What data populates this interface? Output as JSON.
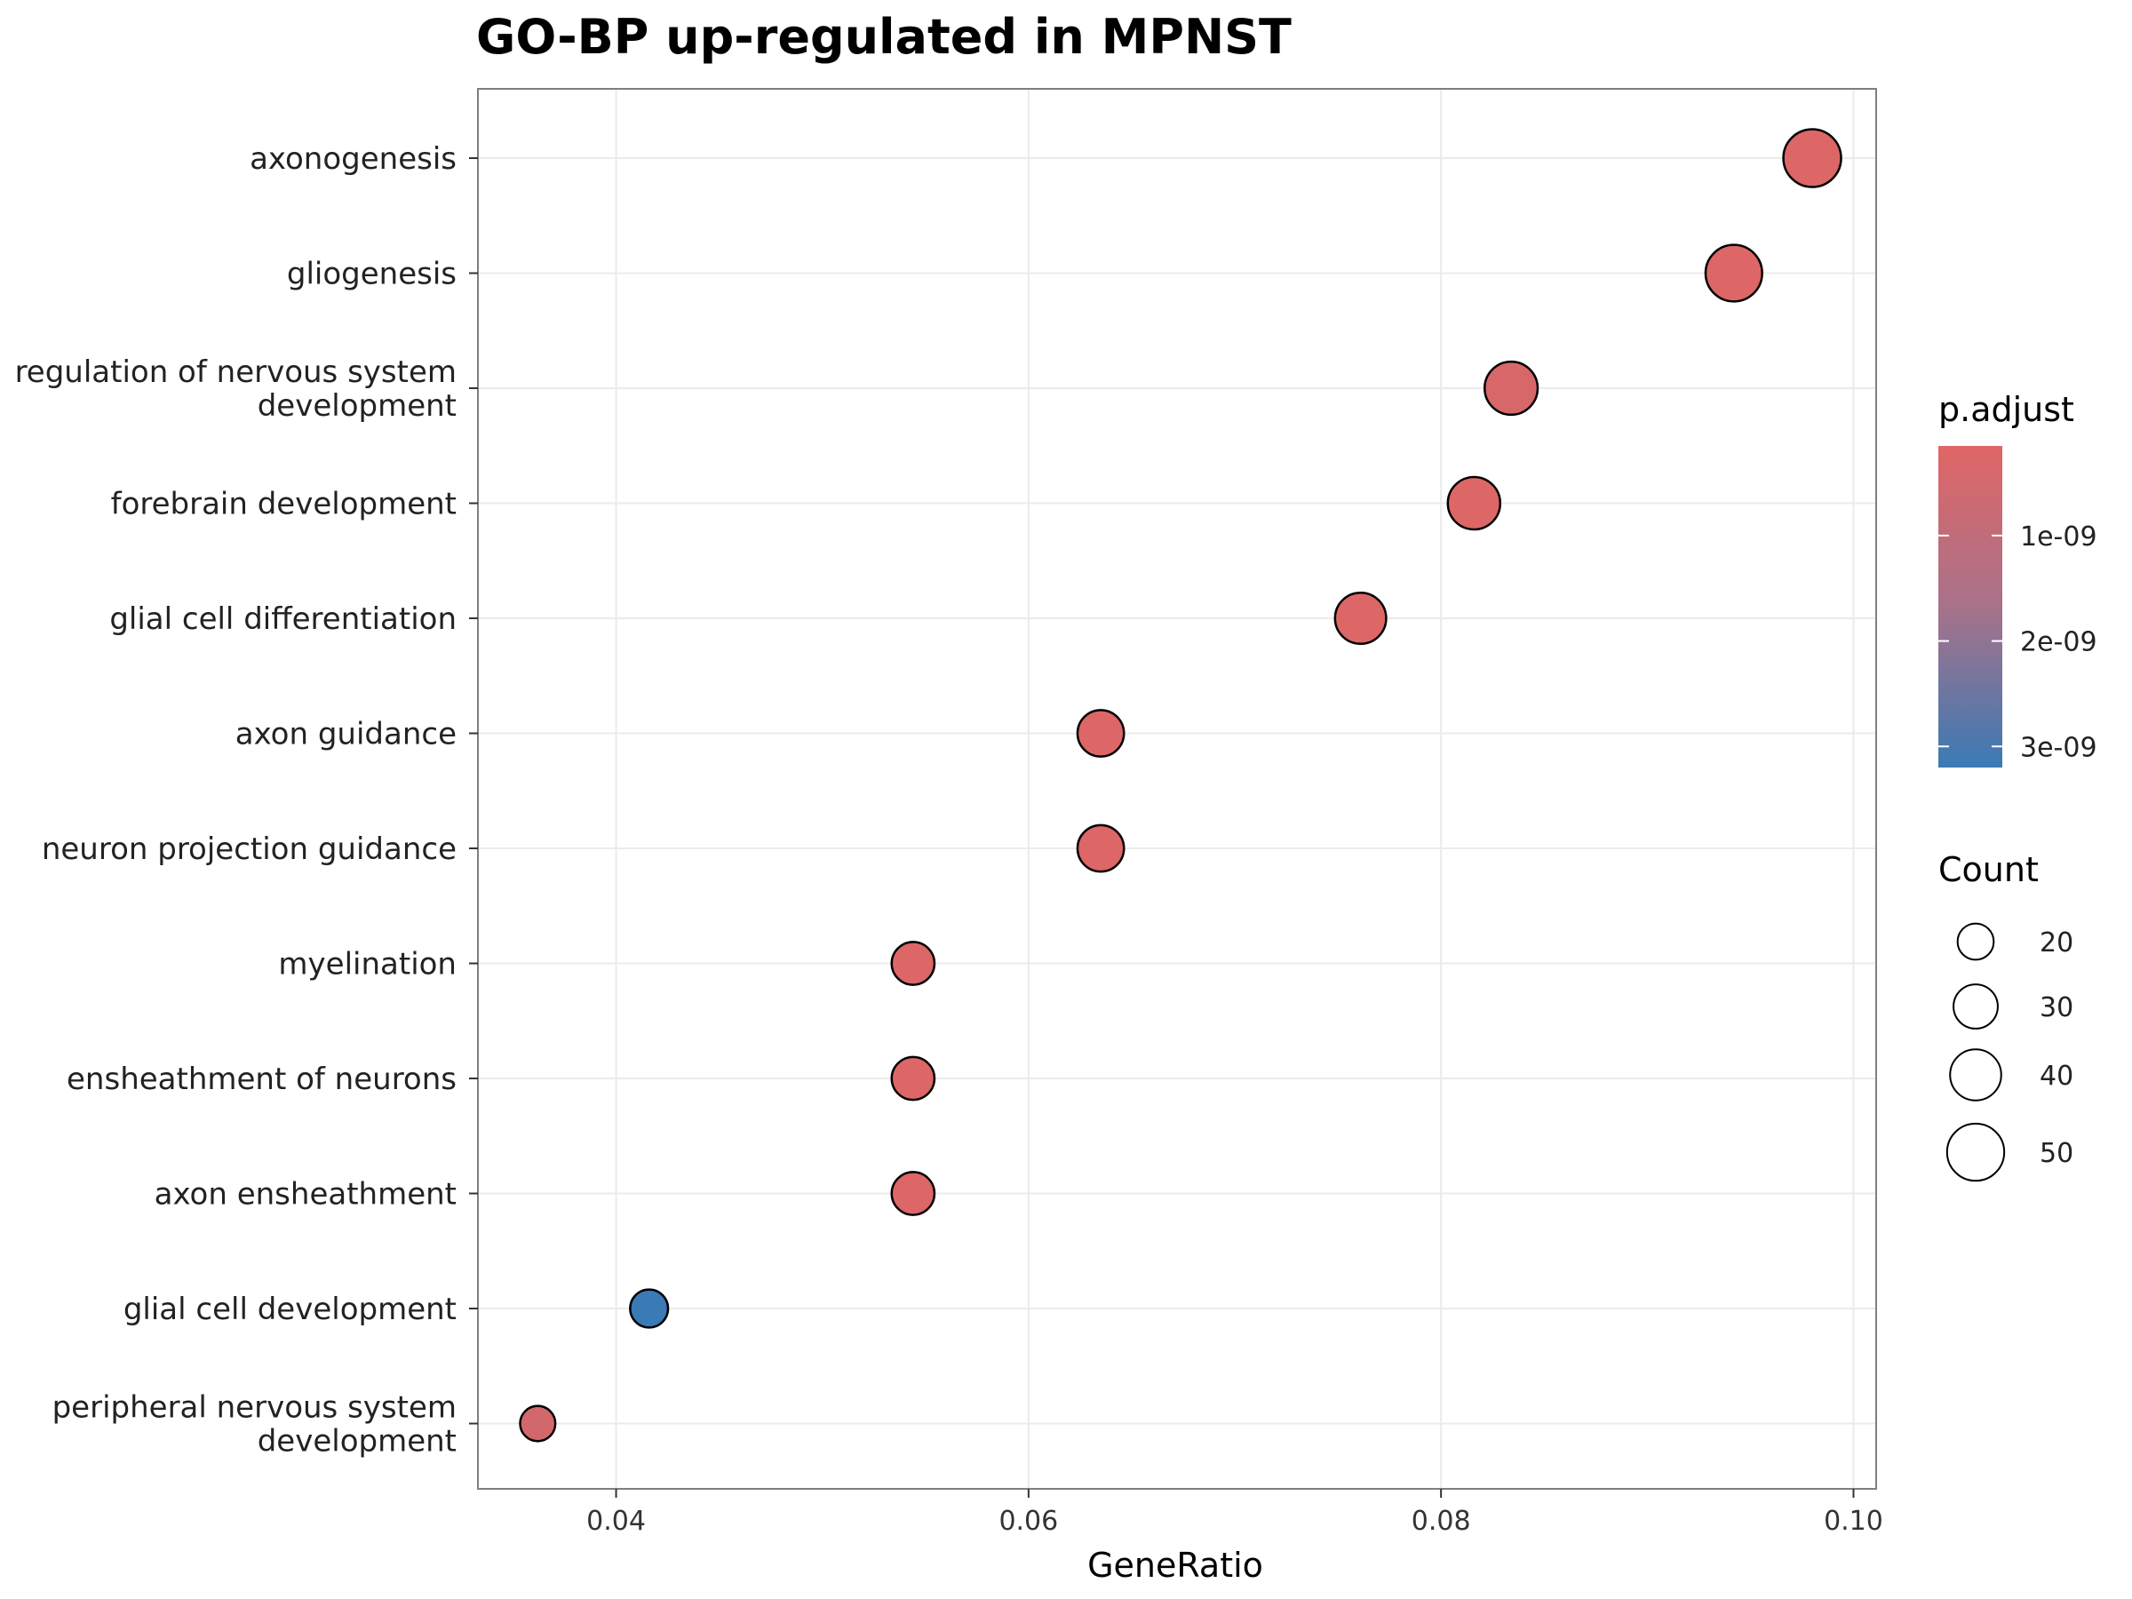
{
  "chart_data": {
    "type": "scatter",
    "title": "GO-BP up-regulated in MPNST",
    "xlabel": "GeneRatio",
    "ylabel": "",
    "xlim": [
      0.0333,
      0.1011
    ],
    "x_ticks": [
      "0.04",
      "0.06",
      "0.08",
      "0.10"
    ],
    "grid": true,
    "legend_position": "right",
    "colors": {
      "low_padjust": "#e06666",
      "high_padjust": "#3a7ab5",
      "point_stroke": "#000000",
      "grid": "#ebebeb",
      "panel_border": "#7f7f7f"
    },
    "terms": [
      {
        "label_lines": [
          "axonogenesis"
        ],
        "gene_ratio": 0.098,
        "count": 51,
        "p_adjust": 2e-10
      },
      {
        "label_lines": [
          "gliogenesis"
        ],
        "gene_ratio": 0.0942,
        "count": 49,
        "p_adjust": 2e-10
      },
      {
        "label_lines": [
          "regulation of nervous system",
          "development"
        ],
        "gene_ratio": 0.0834,
        "count": 43,
        "p_adjust": 3e-10
      },
      {
        "label_lines": [
          "forebrain development"
        ],
        "gene_ratio": 0.0816,
        "count": 42,
        "p_adjust": 2e-10
      },
      {
        "label_lines": [
          "glial cell differentiation"
        ],
        "gene_ratio": 0.0761,
        "count": 40,
        "p_adjust": 2e-10
      },
      {
        "label_lines": [
          "axon guidance"
        ],
        "gene_ratio": 0.0635,
        "count": 33,
        "p_adjust": 2e-10
      },
      {
        "label_lines": [
          "neuron projection guidance"
        ],
        "gene_ratio": 0.0635,
        "count": 33,
        "p_adjust": 2e-10
      },
      {
        "label_lines": [
          "myelination"
        ],
        "gene_ratio": 0.0544,
        "count": 28,
        "p_adjust": 2e-10
      },
      {
        "label_lines": [
          "ensheathment of neurons"
        ],
        "gene_ratio": 0.0544,
        "count": 28,
        "p_adjust": 2e-10
      },
      {
        "label_lines": [
          "axon ensheathment"
        ],
        "gene_ratio": 0.0544,
        "count": 28,
        "p_adjust": 2e-10
      },
      {
        "label_lines": [
          "glial cell development"
        ],
        "gene_ratio": 0.0416,
        "count": 22,
        "p_adjust": 3.2e-09
      },
      {
        "label_lines": [
          "peripheral nervous system",
          "development"
        ],
        "gene_ratio": 0.0362,
        "count": 19,
        "p_adjust": 4e-10
      }
    ],
    "legends": {
      "color": {
        "title": "p.adjust",
        "ticks": [
          {
            "label": "1e-09",
            "value": 1e-09
          },
          {
            "label": "2e-09",
            "value": 2e-09
          },
          {
            "label": "3e-09",
            "value": 3e-09
          }
        ],
        "range": [
          1.5e-10,
          3.2e-09
        ]
      },
      "size": {
        "title": "Count",
        "entries": [
          {
            "label": "20",
            "value": 20
          },
          {
            "label": "30",
            "value": 30
          },
          {
            "label": "40",
            "value": 40
          },
          {
            "label": "50",
            "value": 50
          }
        ]
      }
    }
  }
}
